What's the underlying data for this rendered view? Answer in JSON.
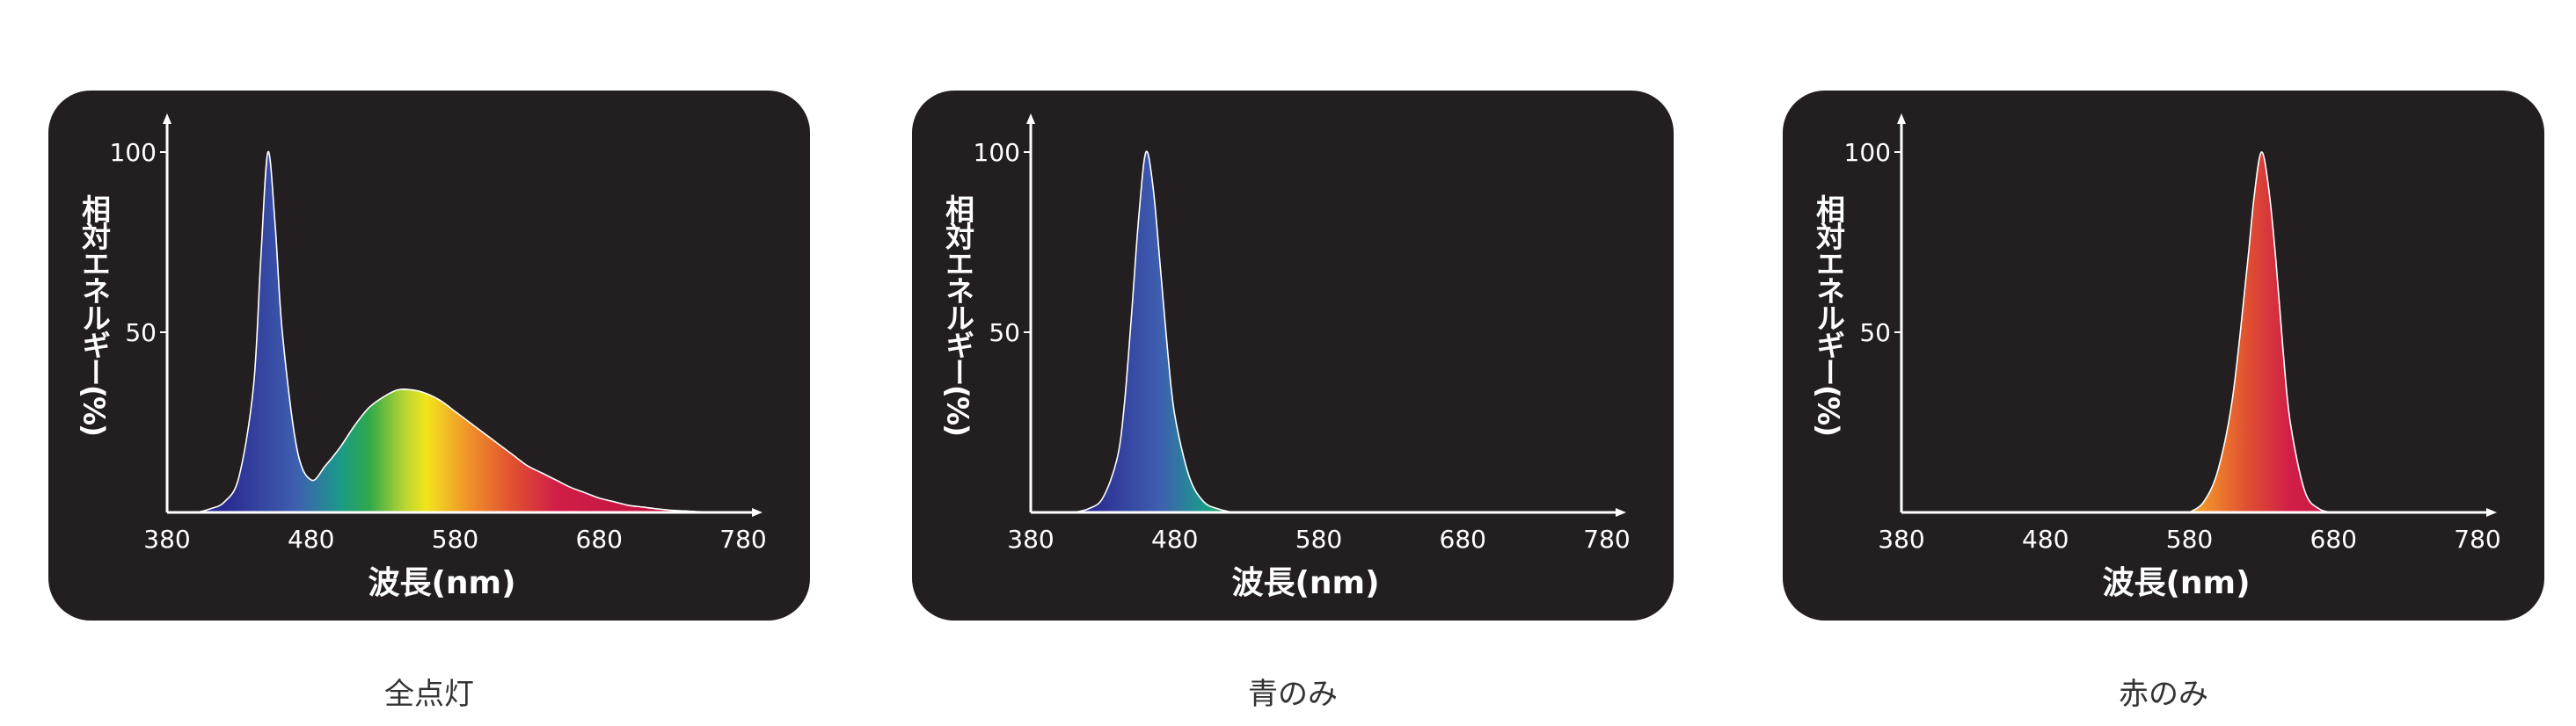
{
  "chart_data": [
    {
      "type": "area",
      "caption": "全点灯",
      "xlabel": "波長(nm)",
      "ylabel": "相対エネルギー(%)",
      "xlim": [
        380,
        780
      ],
      "ylim": [
        0,
        100
      ],
      "xticks": [
        "380",
        "480",
        "580",
        "680",
        "780"
      ],
      "yticks": [
        "100",
        "50"
      ],
      "x": [
        390,
        400,
        410,
        420,
        430,
        440,
        445,
        450,
        455,
        460,
        470,
        480,
        490,
        500,
        510,
        520,
        530,
        540,
        550,
        560,
        570,
        580,
        590,
        600,
        610,
        620,
        630,
        640,
        650,
        660,
        670,
        680,
        690,
        700,
        710,
        720,
        730,
        740,
        750,
        760,
        770,
        780
      ],
      "values": [
        0,
        0,
        1,
        3,
        10,
        35,
        70,
        100,
        80,
        50,
        18,
        9,
        13,
        18,
        24,
        29,
        32,
        34,
        34,
        33,
        31,
        28,
        25,
        22,
        19,
        16,
        13,
        11,
        9,
        7,
        5.5,
        4,
        3,
        2,
        1.5,
        1,
        0.6,
        0.4,
        0.2,
        0.1,
        0,
        0
      ]
    },
    {
      "type": "area",
      "caption": "青のみ",
      "xlabel": "波長(nm)",
      "ylabel": "相対エネルギー(%)",
      "xlim": [
        380,
        780
      ],
      "ylim": [
        0,
        100
      ],
      "xticks": [
        "380",
        "480",
        "580",
        "680",
        "780"
      ],
      "yticks": [
        "100",
        "50"
      ],
      "x": [
        410,
        420,
        430,
        440,
        445,
        450,
        455,
        460,
        465,
        470,
        475,
        480,
        490,
        500,
        510,
        520
      ],
      "values": [
        0,
        1,
        4,
        15,
        30,
        55,
        82,
        100,
        90,
        68,
        45,
        27,
        10,
        3,
        1,
        0
      ]
    },
    {
      "type": "area",
      "caption": "赤のみ",
      "xlabel": "波長(nm)",
      "ylabel": "相対エネルギー(%)",
      "xlim": [
        380,
        780
      ],
      "ylim": [
        0,
        100
      ],
      "xticks": [
        "380",
        "480",
        "580",
        "680",
        "780"
      ],
      "yticks": [
        "100",
        "50"
      ],
      "x": [
        580,
        590,
        600,
        610,
        620,
        625,
        630,
        635,
        640,
        645,
        650,
        660,
        670,
        680
      ],
      "values": [
        0,
        3,
        12,
        32,
        68,
        88,
        100,
        90,
        70,
        45,
        25,
        6,
        1,
        0
      ]
    }
  ],
  "colors": {
    "panel_background": "#231f20",
    "axis": "#ffffff",
    "text": "#ffffff",
    "caption": "#333333",
    "spectrum_stops": [
      {
        "nm": 420,
        "color": "#2a2a90"
      },
      {
        "nm": 470,
        "color": "#3f5fb0"
      },
      {
        "nm": 500,
        "color": "#1a9a8a"
      },
      {
        "nm": 520,
        "color": "#2ea84a"
      },
      {
        "nm": 545,
        "color": "#b8d632"
      },
      {
        "nm": 560,
        "color": "#f2e41c"
      },
      {
        "nm": 590,
        "color": "#f0902a"
      },
      {
        "nm": 620,
        "color": "#e05030"
      },
      {
        "nm": 650,
        "color": "#d01e48"
      },
      {
        "nm": 740,
        "color": "#bf1040"
      }
    ]
  }
}
